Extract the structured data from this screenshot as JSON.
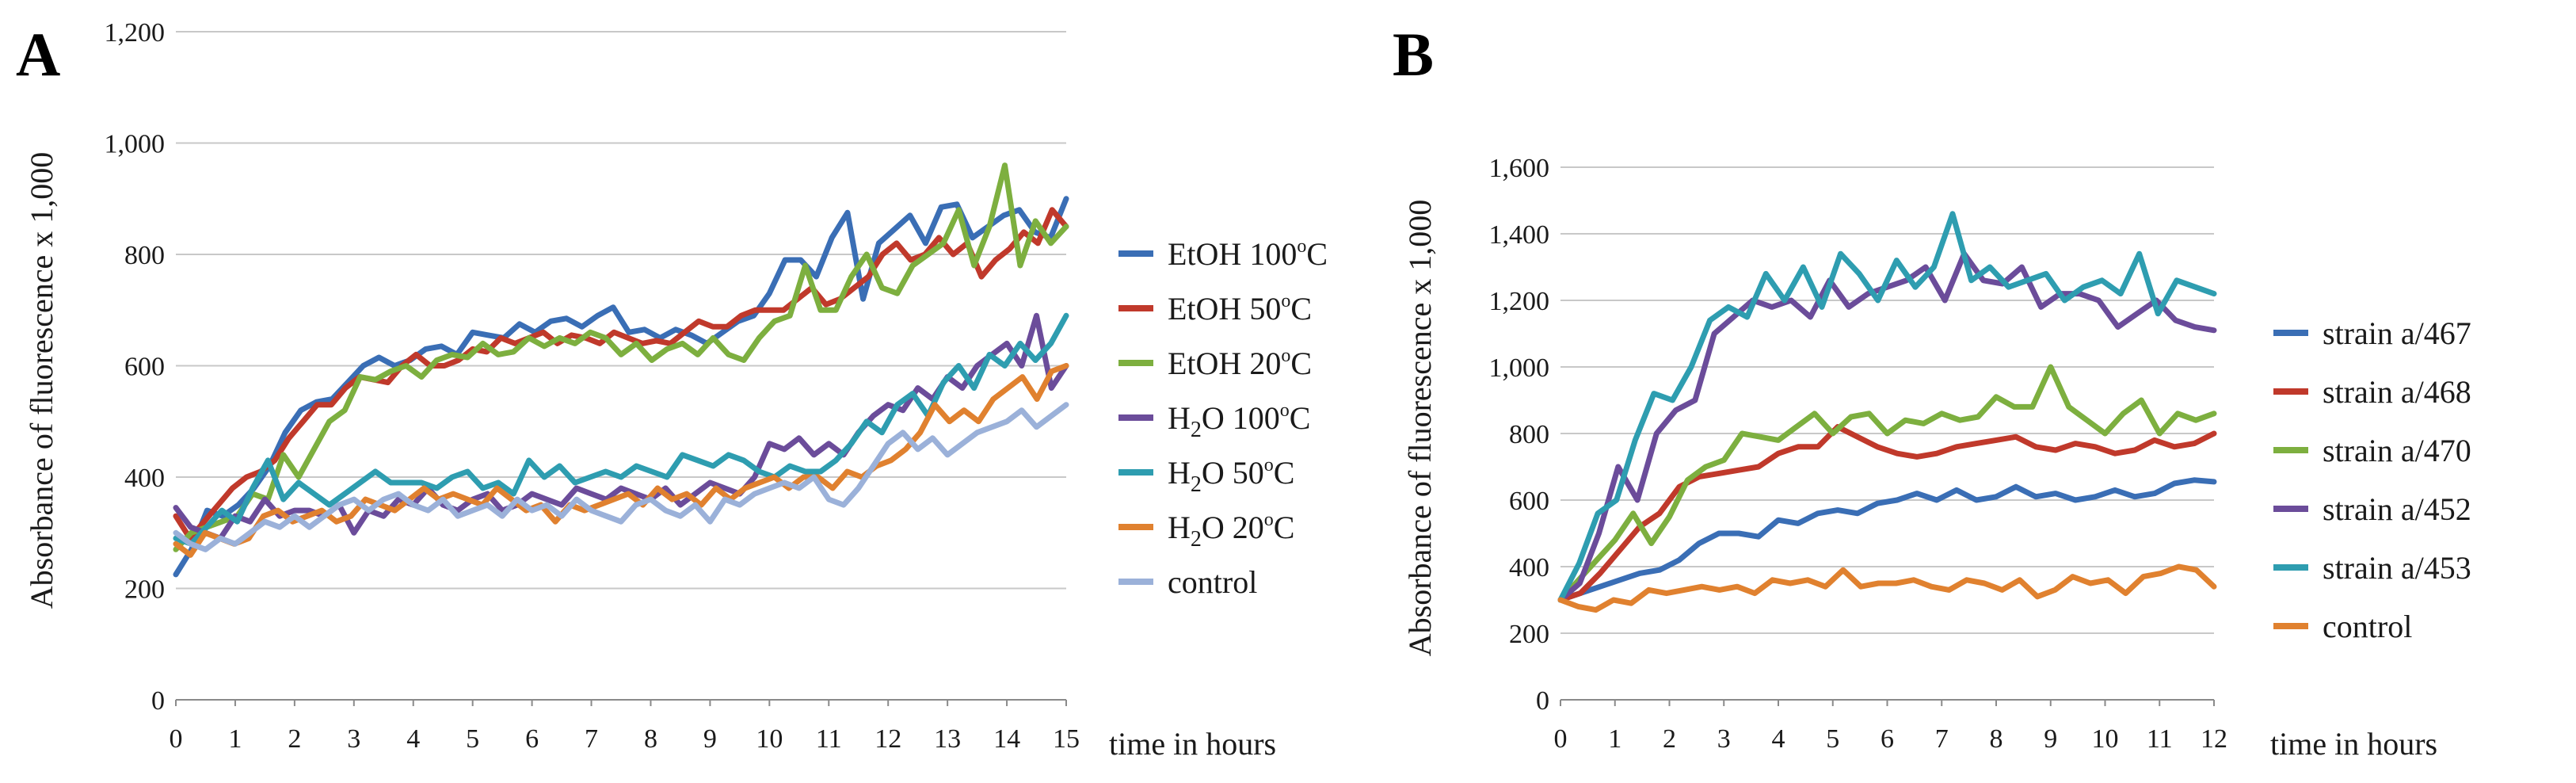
{
  "chart_data": [
    {
      "panel": "A",
      "type": "line",
      "title": "",
      "xlabel": "time in hours",
      "ylabel": "Absorbance of fluorescence x 1,000",
      "xlim": [
        0,
        15
      ],
      "ylim": [
        0,
        1200
      ],
      "xticks": [
        "0",
        "1",
        "2",
        "3",
        "4",
        "5",
        "6",
        "7",
        "8",
        "9",
        "10",
        "11",
        "12",
        "13",
        "14",
        "15"
      ],
      "yticks": [
        "0",
        "200",
        "400",
        "600",
        "800",
        "1,000",
        "1,200"
      ],
      "legend_position": "right",
      "series": [
        {
          "name": "EtOH 100ºC",
          "label_main": "EtOH 100",
          "label_unit": "C",
          "color": "#3A6EB5",
          "values": [
            225,
            270,
            340,
            330,
            350,
            380,
            420,
            480,
            520,
            535,
            540,
            570,
            600,
            615,
            600,
            610,
            630,
            635,
            620,
            660,
            655,
            650,
            675,
            660,
            680,
            685,
            670,
            690,
            705,
            660,
            665,
            650,
            665,
            655,
            640,
            660,
            680,
            690,
            730,
            790,
            790,
            760,
            830,
            875,
            720,
            820,
            845,
            870,
            820,
            885,
            890,
            830,
            850,
            870,
            880,
            840,
            830,
            900
          ]
        },
        {
          "name": "EtOH 50ºC",
          "label_main": "EtOH 50",
          "label_unit": "C",
          "color": "#C0392B",
          "values": [
            330,
            290,
            320,
            350,
            380,
            400,
            410,
            430,
            470,
            500,
            530,
            530,
            560,
            580,
            575,
            570,
            600,
            620,
            600,
            600,
            610,
            630,
            625,
            650,
            640,
            650,
            660,
            640,
            655,
            650,
            640,
            660,
            650,
            640,
            645,
            640,
            660,
            680,
            670,
            670,
            690,
            700,
            700,
            700,
            720,
            740,
            710,
            720,
            740,
            760,
            800,
            820,
            790,
            800,
            830,
            800,
            820,
            760,
            790,
            810,
            840,
            820,
            880,
            850
          ]
        },
        {
          "name": "EtOH 20ºC",
          "label_main": "EtOH 20",
          "label_unit": "C",
          "color": "#7DAF3F",
          "values": [
            270,
            300,
            310,
            320,
            330,
            370,
            360,
            440,
            400,
            450,
            500,
            520,
            580,
            575,
            590,
            600,
            580,
            610,
            620,
            615,
            640,
            620,
            625,
            650,
            635,
            650,
            640,
            660,
            650,
            620,
            640,
            610,
            630,
            640,
            620,
            650,
            620,
            610,
            650,
            680,
            690,
            780,
            700,
            700,
            760,
            800,
            740,
            730,
            780,
            800,
            820,
            880,
            780,
            850,
            960,
            780,
            860,
            820,
            850
          ]
        },
        {
          "name": "H2O 100ºC",
          "label_main": "H",
          "label_sub": "2",
          "label_rest": "O 100",
          "label_unit": "C",
          "color": "#6B4C9A",
          "values": [
            345,
            310,
            300,
            290,
            330,
            320,
            360,
            330,
            340,
            340,
            330,
            350,
            300,
            340,
            330,
            360,
            350,
            380,
            350,
            340,
            360,
            370,
            340,
            350,
            370,
            360,
            350,
            380,
            370,
            360,
            380,
            370,
            360,
            380,
            350,
            370,
            390,
            380,
            370,
            400,
            460,
            450,
            470,
            440,
            460,
            440,
            480,
            510,
            530,
            520,
            560,
            540,
            580,
            560,
            600,
            620,
            640,
            600,
            690,
            560,
            600
          ]
        },
        {
          "name": "H2O 50ºC",
          "label_main": "H",
          "label_sub": "2",
          "label_rest": "O 50",
          "label_unit": "C",
          "color": "#2E9DB0",
          "values": [
            290,
            280,
            310,
            340,
            320,
            380,
            430,
            360,
            390,
            370,
            350,
            370,
            390,
            410,
            390,
            390,
            390,
            380,
            400,
            410,
            380,
            390,
            370,
            430,
            400,
            420,
            390,
            400,
            410,
            400,
            420,
            410,
            400,
            440,
            430,
            420,
            440,
            430,
            410,
            400,
            420,
            410,
            410,
            430,
            460,
            500,
            480,
            530,
            550,
            510,
            570,
            600,
            560,
            620,
            600,
            640,
            610,
            640,
            690
          ]
        },
        {
          "name": "H2O 20ºC",
          "label_main": "H",
          "label_sub": "2",
          "label_rest": "O 20",
          "label_unit": "C",
          "color": "#E0812F",
          "values": [
            280,
            260,
            300,
            290,
            280,
            290,
            330,
            340,
            320,
            330,
            340,
            320,
            330,
            360,
            350,
            340,
            360,
            380,
            360,
            370,
            360,
            350,
            380,
            360,
            340,
            350,
            320,
            350,
            340,
            350,
            360,
            370,
            350,
            380,
            360,
            370,
            350,
            380,
            360,
            380,
            390,
            400,
            380,
            400,
            400,
            380,
            410,
            400,
            420,
            430,
            450,
            480,
            530,
            500,
            520,
            500,
            540,
            560,
            580,
            540,
            590,
            600
          ]
        },
        {
          "name": "control",
          "label_main": "control",
          "color": "#9BB1D9",
          "values": [
            300,
            280,
            270,
            290,
            280,
            300,
            320,
            310,
            330,
            310,
            330,
            350,
            360,
            340,
            360,
            370,
            350,
            340,
            360,
            330,
            340,
            350,
            330,
            360,
            340,
            350,
            330,
            360,
            340,
            330,
            320,
            350,
            360,
            340,
            330,
            350,
            320,
            360,
            350,
            370,
            380,
            390,
            380,
            400,
            360,
            350,
            380,
            420,
            460,
            480,
            450,
            470,
            440,
            460,
            480,
            490,
            500,
            520,
            490,
            510,
            530
          ]
        }
      ]
    },
    {
      "panel": "B",
      "type": "line",
      "title": "",
      "xlabel": "time in  hours",
      "ylabel": "Absorbance of fluorescence x 1,000",
      "xlim": [
        0,
        12
      ],
      "ylim": [
        0,
        1600
      ],
      "xticks": [
        "0",
        "1",
        "2",
        "3",
        "4",
        "5",
        "6",
        "7",
        "8",
        "9",
        "10",
        "11",
        "12"
      ],
      "yticks": [
        "0",
        "200",
        "400",
        "600",
        "800",
        "1,000",
        "1,200",
        "1,400",
        "1,600"
      ],
      "legend_position": "right",
      "series": [
        {
          "name": "strain a/467",
          "color": "#3A6EB5",
          "values": [
            300,
            320,
            340,
            360,
            380,
            390,
            420,
            470,
            500,
            500,
            490,
            540,
            530,
            560,
            570,
            560,
            590,
            600,
            620,
            600,
            630,
            600,
            610,
            640,
            610,
            620,
            600,
            610,
            630,
            610,
            620,
            650,
            660,
            655
          ]
        },
        {
          "name": "strain a/468",
          "color": "#C0392B",
          "values": [
            300,
            320,
            380,
            450,
            520,
            560,
            640,
            670,
            680,
            690,
            700,
            740,
            760,
            760,
            820,
            790,
            760,
            740,
            730,
            740,
            760,
            770,
            780,
            790,
            760,
            750,
            770,
            760,
            740,
            750,
            780,
            760,
            770,
            800
          ]
        },
        {
          "name": "strain a/470",
          "color": "#7DAF3F",
          "values": [
            300,
            360,
            420,
            480,
            560,
            470,
            550,
            660,
            700,
            720,
            800,
            790,
            780,
            820,
            860,
            800,
            850,
            860,
            800,
            840,
            830,
            860,
            840,
            850,
            910,
            880,
            880,
            1000,
            880,
            840,
            800,
            860,
            900,
            800,
            860,
            840,
            860
          ]
        },
        {
          "name": "strain a/452",
          "color": "#6B4C9A",
          "values": [
            300,
            350,
            500,
            700,
            600,
            800,
            870,
            900,
            1100,
            1150,
            1200,
            1180,
            1200,
            1150,
            1260,
            1180,
            1220,
            1240,
            1260,
            1300,
            1200,
            1340,
            1260,
            1250,
            1300,
            1180,
            1220,
            1220,
            1200,
            1120,
            1160,
            1200,
            1140,
            1120,
            1110
          ]
        },
        {
          "name": "strain a/453",
          "color": "#2E9DB0",
          "values": [
            300,
            410,
            560,
            600,
            780,
            920,
            900,
            1000,
            1140,
            1180,
            1150,
            1280,
            1200,
            1300,
            1180,
            1340,
            1280,
            1200,
            1320,
            1240,
            1300,
            1460,
            1260,
            1300,
            1240,
            1260,
            1280,
            1200,
            1240,
            1260,
            1220,
            1340,
            1160,
            1260,
            1240,
            1220
          ]
        },
        {
          "name": "control",
          "color": "#E0812F",
          "values": [
            300,
            280,
            270,
            300,
            290,
            330,
            320,
            330,
            340,
            330,
            340,
            320,
            360,
            350,
            360,
            340,
            390,
            340,
            350,
            350,
            360,
            340,
            330,
            360,
            350,
            330,
            360,
            310,
            330,
            370,
            350,
            360,
            320,
            370,
            380,
            400,
            390,
            340
          ]
        }
      ]
    }
  ]
}
